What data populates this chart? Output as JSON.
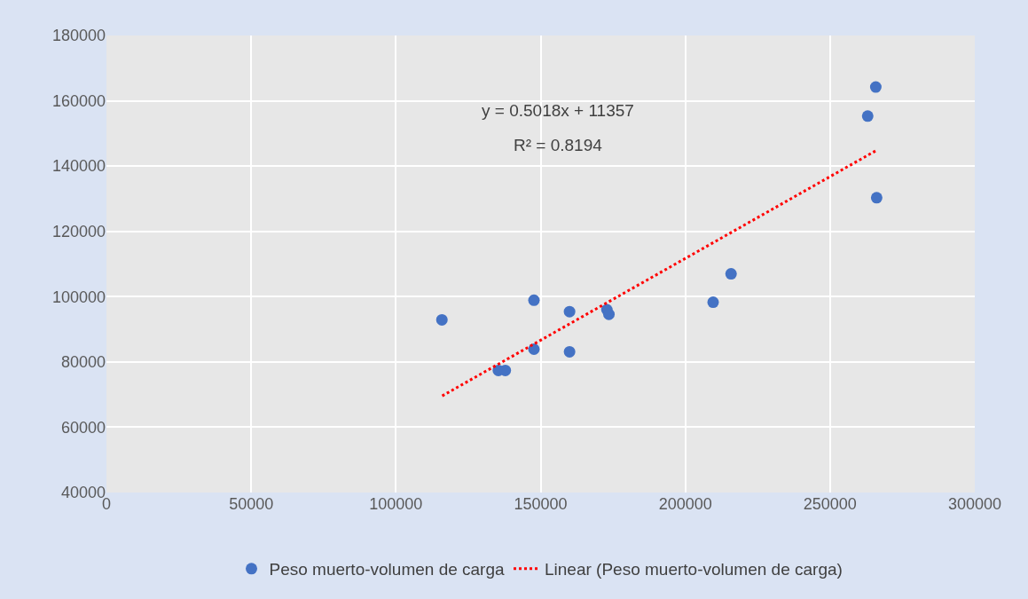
{
  "chart_data": {
    "type": "scatter",
    "xlim": [
      0,
      300000
    ],
    "ylim": [
      40000,
      180000
    ],
    "xticks": [
      0,
      50000,
      100000,
      150000,
      200000,
      250000,
      300000
    ],
    "yticks": [
      40000,
      60000,
      80000,
      100000,
      120000,
      140000,
      160000,
      180000
    ],
    "grid": true,
    "legend": "bottom",
    "annotations": [
      "y = 0.5018x + 11357",
      "R² = 0.8194"
    ],
    "series": [
      {
        "name": "Peso muerto-volumen de carga",
        "marker": "circle",
        "color": "#4472c4",
        "x": [
          115900,
          135400,
          137800,
          147700,
          147700,
          160000,
          160000,
          172900,
          173600,
          209600,
          215800,
          263000,
          265800,
          266100
        ],
        "values": [
          92900,
          77400,
          77400,
          98900,
          83900,
          95400,
          83100,
          96000,
          94600,
          98300,
          107000,
          155300,
          164200,
          130300
        ]
      },
      {
        "name": "Linear (Peso muerto-volumen de carga)",
        "type": "line",
        "line_style": "dotted",
        "color": "#ff0000",
        "x": [
          116000,
          266000
        ],
        "values": [
          69600,
          144800
        ]
      }
    ]
  }
}
